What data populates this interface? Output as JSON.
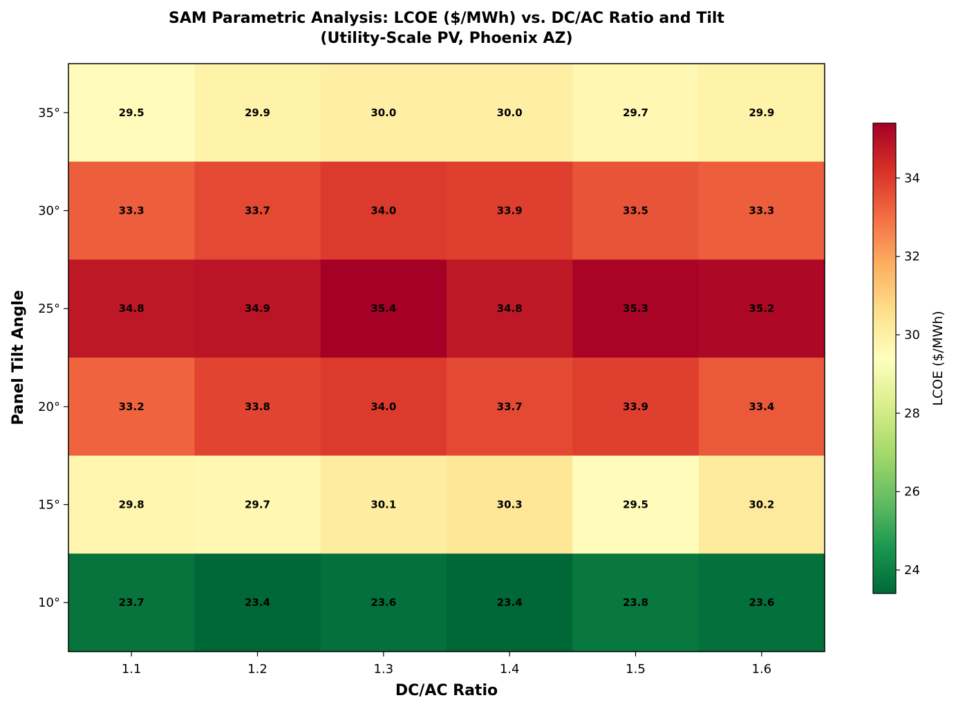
{
  "chart_data": {
    "type": "heatmap",
    "title": "SAM Parametric Analysis: LCOE ($/MWh) vs. DC/AC Ratio and Tilt",
    "subtitle": "(Utility-Scale PV, Phoenix AZ)",
    "xlabel": "DC/AC Ratio",
    "ylabel": "Panel Tilt Angle",
    "x_categories": [
      "1.1",
      "1.2",
      "1.3",
      "1.4",
      "1.5",
      "1.6"
    ],
    "y_categories": [
      "35°",
      "30°",
      "25°",
      "20°",
      "15°",
      "10°"
    ],
    "values": [
      [
        29.5,
        29.9,
        30.0,
        30.0,
        29.7,
        29.9
      ],
      [
        33.3,
        33.7,
        34.0,
        33.9,
        33.5,
        33.3
      ],
      [
        34.8,
        34.9,
        35.4,
        34.8,
        35.3,
        35.2
      ],
      [
        33.2,
        33.8,
        34.0,
        33.7,
        33.9,
        33.4
      ],
      [
        29.8,
        29.7,
        30.1,
        30.3,
        29.5,
        30.2
      ],
      [
        23.7,
        23.4,
        23.6,
        23.4,
        23.8,
        23.6
      ]
    ],
    "colormap": "RdYlGn_r",
    "vmin": 23.4,
    "vmax": 35.4,
    "colorbar": {
      "label": "LCOE ($/MWh)",
      "ticks": [
        24,
        26,
        28,
        30,
        32,
        34
      ]
    }
  }
}
